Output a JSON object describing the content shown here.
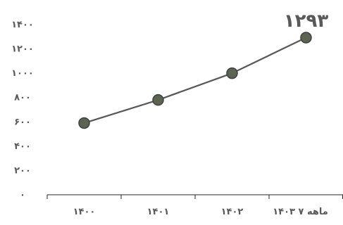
{
  "chart_data": {
    "type": "line",
    "categories": [
      "۱۴۰۰",
      "۱۴۰۱",
      "۱۴۰۲",
      "۱۴۰۳ ۷ ماهه"
    ],
    "values": [
      590,
      780,
      1000,
      1293
    ],
    "data_labels": [
      "",
      "",
      "",
      "۱۲۹۳"
    ],
    "ylim": [
      0,
      1400
    ],
    "yticks": [
      0,
      200,
      400,
      600,
      800,
      1000,
      1200,
      1400
    ],
    "ytick_labels": [
      "۰",
      "۲۰۰",
      "۴۰۰",
      "۶۰۰",
      "۸۰۰",
      "۱۰۰۰",
      "۱۲۰۰",
      "۱۴۰۰"
    ],
    "grid": false,
    "legend": "none",
    "colors": {
      "line": "#595959",
      "marker_fill": "#5c6350",
      "marker_stroke": "#404040",
      "text": "#595959",
      "axis": "#262626"
    }
  }
}
